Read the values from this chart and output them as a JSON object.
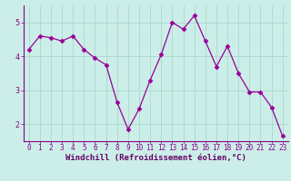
{
  "x": [
    0,
    1,
    2,
    3,
    4,
    5,
    6,
    7,
    8,
    9,
    10,
    11,
    12,
    13,
    14,
    15,
    16,
    17,
    18,
    19,
    20,
    21,
    22,
    23
  ],
  "y": [
    4.2,
    4.6,
    4.55,
    4.45,
    4.6,
    4.2,
    3.95,
    3.75,
    2.65,
    1.85,
    2.45,
    3.3,
    4.05,
    5.0,
    4.8,
    5.2,
    4.45,
    3.7,
    4.3,
    3.5,
    2.95,
    2.95,
    2.5,
    1.65
  ],
  "line_color": "#990099",
  "marker": "D",
  "marker_size": 2.5,
  "bg_color": "#cceee8",
  "grid_color": "#aad8d0",
  "xlabel": "Windchill (Refroidissement éolien,°C)",
  "xlabel_color": "#660066",
  "tick_color": "#880088",
  "axis_color": "#880088",
  "ylim": [
    1.5,
    5.5
  ],
  "xlim": [
    -0.5,
    23.5
  ],
  "yticks": [
    2,
    3,
    4,
    5
  ],
  "xticks": [
    0,
    1,
    2,
    3,
    4,
    5,
    6,
    7,
    8,
    9,
    10,
    11,
    12,
    13,
    14,
    15,
    16,
    17,
    18,
    19,
    20,
    21,
    22,
    23
  ],
  "xlabel_fontsize": 6.5,
  "tick_fontsize": 5.5
}
